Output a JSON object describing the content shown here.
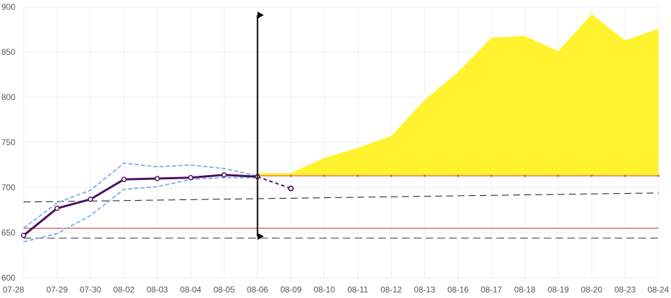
{
  "chart_data": {
    "type": "line",
    "title": "",
    "xlabel": "",
    "ylabel": "",
    "categories": [
      "07-28",
      "07-29",
      "07-30",
      "08-02",
      "08-03",
      "08-04",
      "08-05",
      "08-06",
      "08-09",
      "08-10",
      "08-11",
      "08-12",
      "08-13",
      "08-16",
      "08-17",
      "08-18",
      "08-19",
      "08-20",
      "08-23",
      "08-24"
    ],
    "y_ticks": [
      600,
      650,
      700,
      750,
      800,
      850,
      900
    ],
    "ylim": [
      600,
      900
    ],
    "grid": true,
    "legend": "none",
    "series": [
      {
        "role": "price",
        "values": [
          647,
          677,
          687,
          709,
          710,
          711,
          714,
          712,
          null,
          null,
          null,
          null,
          null,
          null,
          null,
          null,
          null,
          null,
          null,
          null
        ]
      },
      {
        "role": "price-projection",
        "values": [
          null,
          null,
          null,
          null,
          null,
          null,
          null,
          712,
          699,
          null,
          null,
          null,
          null,
          null,
          null,
          null,
          null,
          null,
          null,
          null
        ]
      },
      {
        "role": "band-upper",
        "values": [
          655,
          683,
          697,
          727,
          723,
          725,
          721,
          713,
          null,
          null,
          null,
          null,
          null,
          null,
          null,
          null,
          null,
          null,
          null,
          null
        ]
      },
      {
        "role": "band-lower",
        "values": [
          640,
          649,
          669,
          698,
          701,
          709,
          711,
          711,
          null,
          null,
          null,
          null,
          null,
          null,
          null,
          null,
          null,
          null,
          null,
          null
        ]
      },
      {
        "role": "forecast-area",
        "baseline": 713,
        "values": [
          null,
          null,
          null,
          null,
          null,
          null,
          null,
          716,
          716,
          733,
          744,
          757,
          797,
          828,
          866,
          868,
          851,
          892,
          863,
          876
        ]
      },
      {
        "role": "level-713",
        "values": [
          null,
          null,
          null,
          null,
          null,
          null,
          null,
          713,
          713,
          713,
          713,
          713,
          713,
          713,
          713,
          713,
          713,
          713,
          713,
          713
        ]
      }
    ],
    "trend_line": {
      "start": [
        "07-28",
        684
      ],
      "end": [
        "08-24",
        694
      ]
    },
    "reference_lines": [
      {
        "role": "red-level",
        "y": 655
      },
      {
        "role": "dashed-support",
        "y": 644
      }
    ],
    "vertical_marker": {
      "x": "08-06",
      "y_from": 646,
      "y_to": 891
    },
    "colors": {
      "price": "#4b0f5e",
      "band": "#7aaee8",
      "area": "#fff22e",
      "level_line": "#e05a4a",
      "red_level": "#c0392b",
      "trend": "#111111",
      "marker": "#000000",
      "grid": "#eeeeee",
      "axis_text": "#555555"
    }
  }
}
